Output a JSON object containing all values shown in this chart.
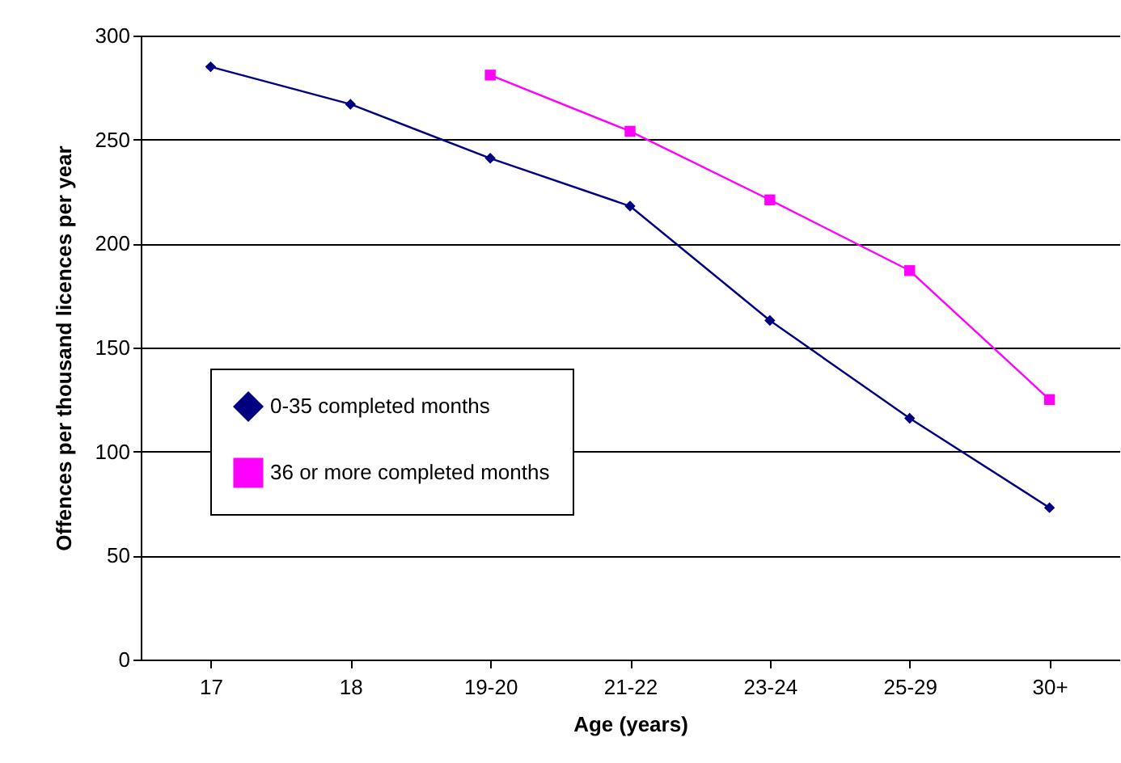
{
  "chart_data": {
    "type": "line",
    "xlabel": "Age (years)",
    "ylabel": "Offences per thousand licences per year",
    "categories": [
      "17",
      "18",
      "19-20",
      "21-22",
      "23-24",
      "25-29",
      "30+"
    ],
    "series": [
      {
        "name": "0-35 completed months",
        "color": "#000080",
        "marker": "diamond",
        "values": [
          285,
          267,
          241,
          218,
          163,
          116,
          73
        ]
      },
      {
        "name": "36 or more completed months",
        "color": "#ff00ff",
        "marker": "square",
        "values": [
          null,
          null,
          281,
          254,
          221,
          187,
          125
        ]
      }
    ],
    "ylim": [
      0,
      300
    ],
    "yticks": [
      0,
      50,
      100,
      150,
      200,
      250,
      300
    ],
    "grid": "y",
    "legend": "left",
    "line_style": "solid"
  }
}
